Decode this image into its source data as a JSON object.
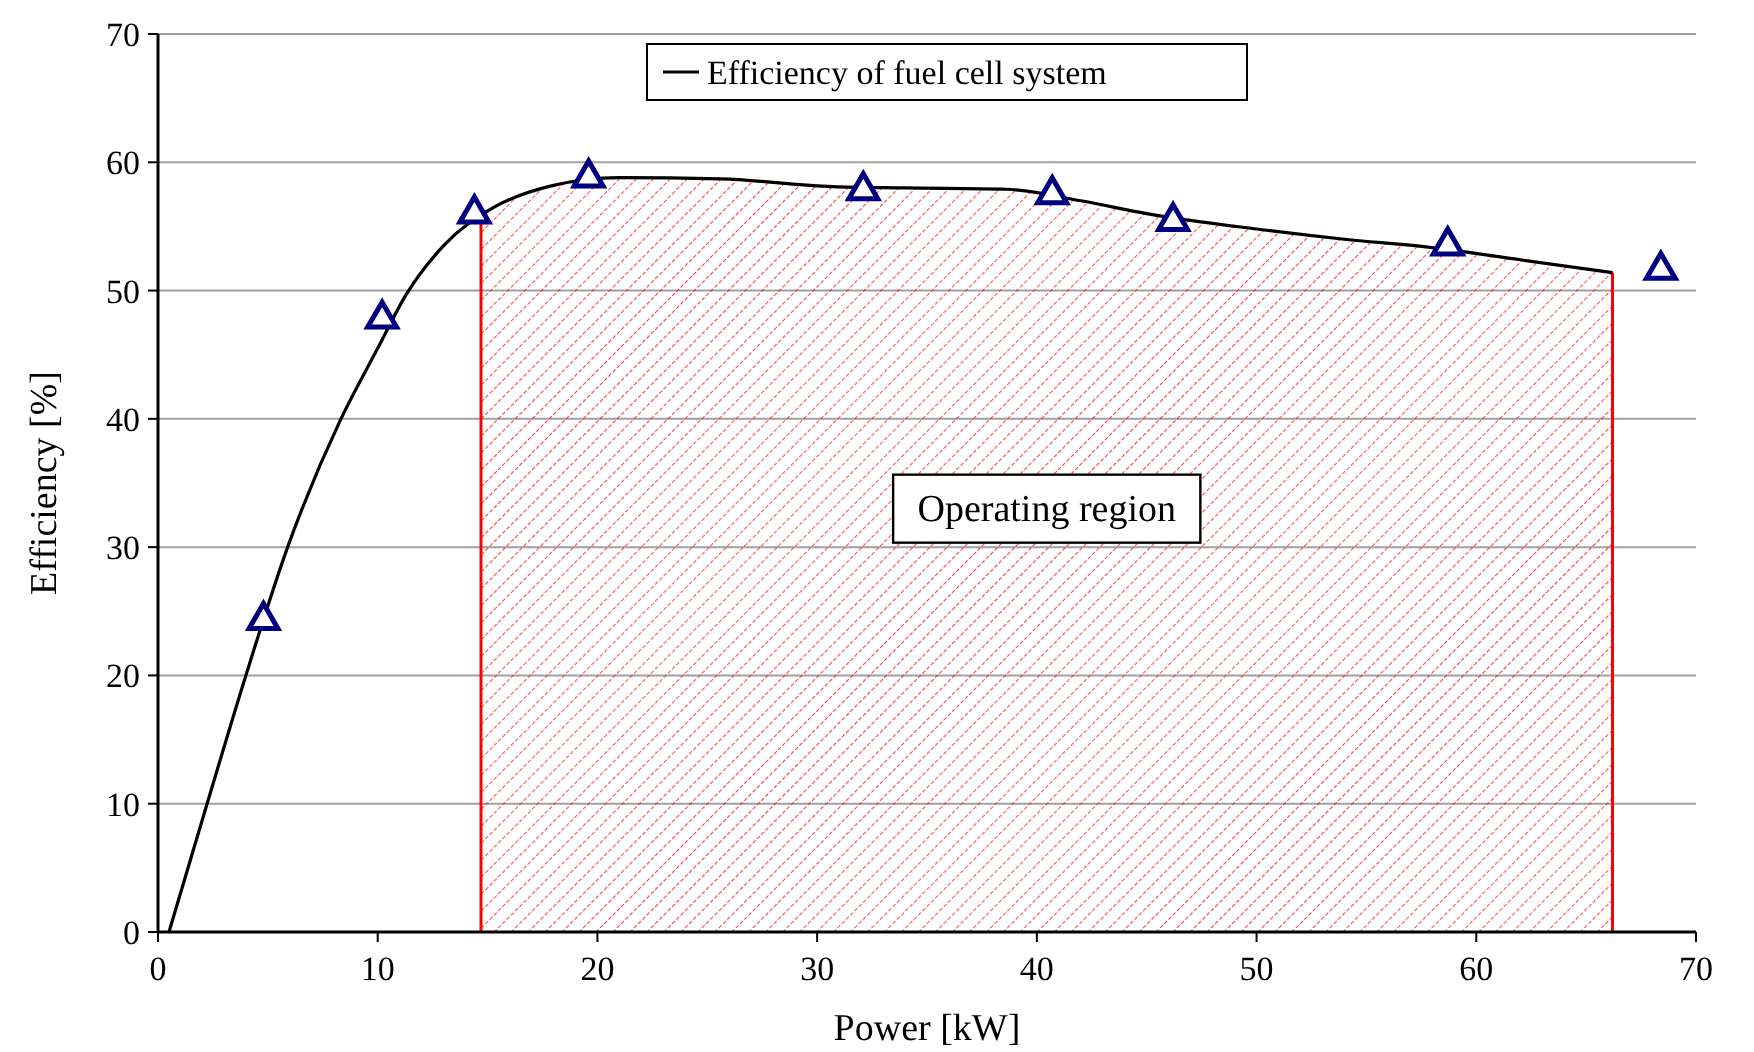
{
  "chart_data": {
    "type": "line",
    "xlabel": "Power [kW]",
    "ylabel": "Efficiency [%]",
    "xlim": [
      0,
      70
    ],
    "ylim": [
      0,
      70
    ],
    "xticks": [
      0,
      10,
      20,
      30,
      40,
      50,
      60,
      70
    ],
    "yticks": [
      0,
      10,
      20,
      30,
      40,
      50,
      60,
      70
    ],
    "grid": "y",
    "legend": "top",
    "series": [
      {
        "name": "Efficiency of fuel cell system",
        "color": "#000000",
        "marker": "none",
        "x": [
          0.5,
          2.2,
          4,
          5.9,
          8.3,
          10,
          11.3,
          13,
          15.3,
          18,
          21,
          25.6,
          30.7,
          34,
          38.6,
          42,
          45,
          50,
          54,
          57.7,
          62,
          66.2
        ],
        "values": [
          0,
          9.8,
          20,
          30,
          39.9,
          45.5,
          49.7,
          53.5,
          56.5,
          58.2,
          58.8,
          58.7,
          58.1,
          58,
          57.9,
          57,
          56,
          54.8,
          54,
          53.4,
          52.4,
          51.4
        ]
      },
      {
        "type": "scatter",
        "color": "#000080",
        "marker": "triangle",
        "x": [
          4.8,
          10.2,
          14.4,
          19.6,
          32.1,
          40.7,
          46.2,
          58.7,
          68.4
        ],
        "values": [
          24.3,
          47.8,
          56,
          58.8,
          57.8,
          57.5,
          55.4,
          53.5,
          51.6
        ]
      }
    ],
    "ref_lines": [
      {
        "axis": "x",
        "value": 14.7,
        "color": "#ff0000"
      },
      {
        "axis": "x",
        "value": 66.2,
        "color": "#ff0000"
      }
    ],
    "bands": [
      {
        "axis": "x",
        "from": 14.7,
        "to": 66.2,
        "label": "Operating region",
        "color": "#ff0000"
      }
    ]
  }
}
